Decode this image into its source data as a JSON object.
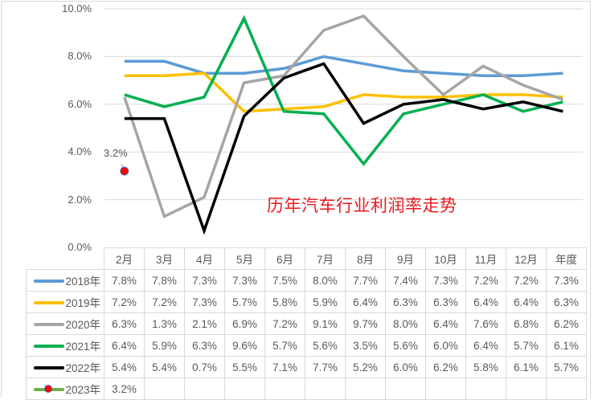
{
  "chart_data": {
    "type": "line",
    "title": "历年汽车行业利润率走势",
    "xlabel": "",
    "ylabel": "",
    "ylim": [
      0,
      10
    ],
    "y_ticks": [
      "0.0%",
      "2.0%",
      "4.0%",
      "6.0%",
      "8.0%",
      "10.0%"
    ],
    "grid": true,
    "legend_position": "data-table",
    "categories": [
      "2月",
      "3月",
      "4月",
      "5月",
      "6月",
      "7月",
      "8月",
      "9月",
      "10月",
      "11月",
      "12月",
      "年度"
    ],
    "series": [
      {
        "name": "2018年",
        "color": "#5b9bd5",
        "values": [
          7.8,
          7.8,
          7.3,
          7.3,
          7.5,
          8.0,
          7.7,
          7.4,
          7.3,
          7.2,
          7.2,
          7.3
        ],
        "labels": [
          "7.8%",
          "7.8%",
          "7.3%",
          "7.3%",
          "7.5%",
          "8.0%",
          "7.7%",
          "7.4%",
          "7.3%",
          "7.2%",
          "7.2%",
          "7.3%"
        ]
      },
      {
        "name": "2019年",
        "color": "#ffc000",
        "values": [
          7.2,
          7.2,
          7.3,
          5.7,
          5.8,
          5.9,
          6.4,
          6.3,
          6.3,
          6.4,
          6.4,
          6.3
        ],
        "labels": [
          "7.2%",
          "7.2%",
          "7.3%",
          "5.7%",
          "5.8%",
          "5.9%",
          "6.4%",
          "6.3%",
          "6.3%",
          "6.4%",
          "6.4%",
          "6.3%"
        ]
      },
      {
        "name": "2020年",
        "color": "#a5a5a5",
        "values": [
          6.3,
          1.3,
          2.1,
          6.9,
          7.2,
          9.1,
          9.7,
          8.0,
          6.4,
          7.6,
          6.8,
          6.2
        ],
        "labels": [
          "6.3%",
          "1.3%",
          "2.1%",
          "6.9%",
          "7.2%",
          "9.1%",
          "9.7%",
          "8.0%",
          "6.4%",
          "7.6%",
          "6.8%",
          "6.2%"
        ]
      },
      {
        "name": "2021年",
        "color": "#00b050",
        "values": [
          6.4,
          5.9,
          6.3,
          9.6,
          5.7,
          5.6,
          3.5,
          5.6,
          6.0,
          6.4,
          5.7,
          6.1
        ],
        "labels": [
          "6.4%",
          "5.9%",
          "6.3%",
          "9.6%",
          "5.7%",
          "5.6%",
          "3.5%",
          "5.6%",
          "6.0%",
          "6.4%",
          "5.7%",
          "6.1%"
        ]
      },
      {
        "name": "2022年",
        "color": "#000000",
        "values": [
          5.4,
          5.4,
          0.7,
          5.5,
          7.1,
          7.7,
          5.2,
          6.0,
          6.2,
          5.8,
          6.1,
          5.7
        ],
        "labels": [
          "5.4%",
          "5.4%",
          "0.7%",
          "5.5%",
          "7.1%",
          "7.7%",
          "5.2%",
          "6.0%",
          "6.2%",
          "5.8%",
          "6.1%",
          "5.7%"
        ]
      },
      {
        "name": "2023年",
        "color": "#70ad47",
        "marker_color": "#ff0000",
        "values": [
          3.2,
          null,
          null,
          null,
          null,
          null,
          null,
          null,
          null,
          null,
          null,
          null
        ],
        "labels": [
          "3.2%",
          "",
          "",
          "",
          "",
          "",
          "",
          "",
          "",
          "",
          "",
          ""
        ]
      }
    ],
    "annotations": [
      {
        "text": "3.2%",
        "series": "2023年",
        "category": "2月"
      }
    ]
  }
}
